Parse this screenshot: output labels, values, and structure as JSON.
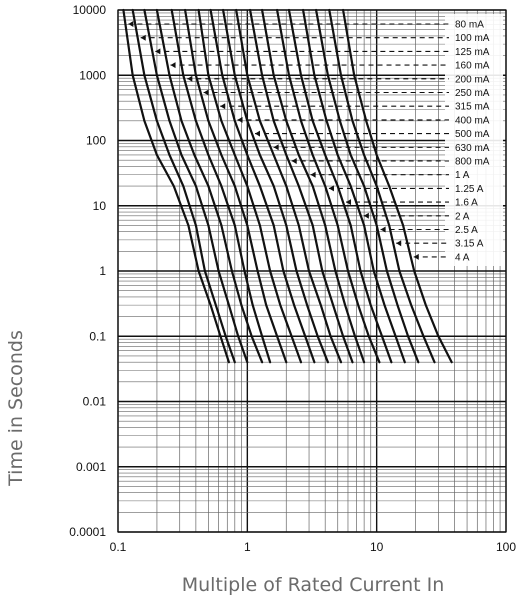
{
  "chart_data": {
    "type": "line",
    "title": "",
    "xlabel": "Multiple of Rated Current In",
    "ylabel": "Time in Seconds",
    "x_scale": "log",
    "y_scale": "log",
    "xlim": [
      0.1,
      100
    ],
    "ylim": [
      0.0001,
      10000
    ],
    "x_ticks": [
      "0.1",
      "1",
      "10",
      "100"
    ],
    "y_ticks": [
      "10000",
      "1000",
      "100",
      "10",
      "1",
      "0.1",
      "0.01",
      "0.001",
      "0.0001"
    ],
    "grid": true,
    "colors": {
      "curve": "#111111",
      "grid": "#555555",
      "axis_title": "#6b6b6b"
    },
    "series": [
      {
        "name": "80 mA",
        "min_x": 0.11,
        "end_x": 0.72,
        "points": [
          [
            0.11,
            10000
          ],
          [
            0.13,
            1000
          ],
          [
            0.16,
            200
          ],
          [
            0.2,
            60
          ],
          [
            0.27,
            20
          ],
          [
            0.35,
            5
          ],
          [
            0.42,
            1
          ],
          [
            0.52,
            0.3
          ],
          [
            0.62,
            0.1
          ],
          [
            0.72,
            0.04
          ]
        ]
      },
      {
        "name": "100 mA",
        "min_x": 0.13,
        "end_x": 0.8,
        "points": [
          [
            0.13,
            10000
          ],
          [
            0.16,
            1000
          ],
          [
            0.2,
            200
          ],
          [
            0.25,
            60
          ],
          [
            0.32,
            20
          ],
          [
            0.4,
            5
          ],
          [
            0.47,
            1
          ],
          [
            0.57,
            0.3
          ],
          [
            0.68,
            0.1
          ],
          [
            0.8,
            0.04
          ]
        ]
      },
      {
        "name": "125 mA",
        "min_x": 0.16,
        "end_x": 1.0,
        "points": [
          [
            0.16,
            10000
          ],
          [
            0.2,
            1000
          ],
          [
            0.25,
            200
          ],
          [
            0.31,
            60
          ],
          [
            0.4,
            20
          ],
          [
            0.5,
            5
          ],
          [
            0.6,
            1
          ],
          [
            0.72,
            0.3
          ],
          [
            0.85,
            0.1
          ],
          [
            1.0,
            0.04
          ]
        ]
      },
      {
        "name": "160 mA",
        "min_x": 0.2,
        "end_x": 1.3,
        "points": [
          [
            0.2,
            10000
          ],
          [
            0.25,
            1000
          ],
          [
            0.31,
            200
          ],
          [
            0.39,
            60
          ],
          [
            0.5,
            20
          ],
          [
            0.63,
            5
          ],
          [
            0.76,
            1
          ],
          [
            0.9,
            0.3
          ],
          [
            1.08,
            0.1
          ],
          [
            1.3,
            0.04
          ]
        ]
      },
      {
        "name": "200 mA",
        "min_x": 0.26,
        "end_x": 1.5,
        "points": [
          [
            0.26,
            10000
          ],
          [
            0.32,
            1000
          ],
          [
            0.4,
            200
          ],
          [
            0.5,
            60
          ],
          [
            0.63,
            20
          ],
          [
            0.8,
            5
          ],
          [
            0.95,
            1
          ],
          [
            1.1,
            0.3
          ],
          [
            1.3,
            0.1
          ],
          [
            1.5,
            0.04
          ]
        ]
      },
      {
        "name": "250 mA",
        "min_x": 0.33,
        "end_x": 2.0,
        "points": [
          [
            0.33,
            10000
          ],
          [
            0.4,
            1000
          ],
          [
            0.5,
            200
          ],
          [
            0.63,
            60
          ],
          [
            0.8,
            20
          ],
          [
            1.0,
            5
          ],
          [
            1.2,
            1
          ],
          [
            1.4,
            0.3
          ],
          [
            1.7,
            0.1
          ],
          [
            2.0,
            0.04
          ]
        ]
      },
      {
        "name": "315 mA",
        "min_x": 0.42,
        "end_x": 2.6,
        "points": [
          [
            0.42,
            10000
          ],
          [
            0.5,
            1000
          ],
          [
            0.63,
            200
          ],
          [
            0.8,
            60
          ],
          [
            1.0,
            20
          ],
          [
            1.25,
            5
          ],
          [
            1.5,
            1
          ],
          [
            1.8,
            0.3
          ],
          [
            2.2,
            0.1
          ],
          [
            2.6,
            0.04
          ]
        ]
      },
      {
        "name": "400 mA",
        "min_x": 0.52,
        "end_x": 3.3,
        "points": [
          [
            0.52,
            10000
          ],
          [
            0.64,
            1000
          ],
          [
            0.8,
            200
          ],
          [
            1.0,
            60
          ],
          [
            1.25,
            20
          ],
          [
            1.6,
            5
          ],
          [
            1.9,
            1
          ],
          [
            2.3,
            0.3
          ],
          [
            2.8,
            0.1
          ],
          [
            3.3,
            0.04
          ]
        ]
      },
      {
        "name": "500 mA",
        "min_x": 0.65,
        "end_x": 4.2,
        "points": [
          [
            0.65,
            10000
          ],
          [
            0.8,
            1000
          ],
          [
            1.0,
            200
          ],
          [
            1.25,
            60
          ],
          [
            1.6,
            20
          ],
          [
            2.0,
            5
          ],
          [
            2.4,
            1
          ],
          [
            2.9,
            0.3
          ],
          [
            3.5,
            0.1
          ],
          [
            4.2,
            0.04
          ]
        ]
      },
      {
        "name": "630 mA",
        "min_x": 0.82,
        "end_x": 5.3,
        "points": [
          [
            0.82,
            10000
          ],
          [
            1.0,
            1000
          ],
          [
            1.25,
            200
          ],
          [
            1.6,
            60
          ],
          [
            2.0,
            20
          ],
          [
            2.5,
            5
          ],
          [
            3.0,
            1
          ],
          [
            3.7,
            0.3
          ],
          [
            4.4,
            0.1
          ],
          [
            5.3,
            0.04
          ]
        ]
      },
      {
        "name": "800 mA",
        "min_x": 1.05,
        "end_x": 6.5,
        "points": [
          [
            1.05,
            10000
          ],
          [
            1.3,
            1000
          ],
          [
            1.6,
            200
          ],
          [
            2.0,
            60
          ],
          [
            2.5,
            20
          ],
          [
            3.2,
            5
          ],
          [
            3.8,
            1
          ],
          [
            4.6,
            0.3
          ],
          [
            5.5,
            0.1
          ],
          [
            6.5,
            0.04
          ]
        ]
      },
      {
        "name": "1 A",
        "min_x": 1.3,
        "end_x": 8.0,
        "points": [
          [
            1.3,
            10000
          ],
          [
            1.6,
            1000
          ],
          [
            2.0,
            200
          ],
          [
            2.5,
            60
          ],
          [
            3.2,
            20
          ],
          [
            4.0,
            5
          ],
          [
            4.8,
            1
          ],
          [
            5.7,
            0.3
          ],
          [
            6.8,
            0.1
          ],
          [
            8.0,
            0.04
          ]
        ]
      },
      {
        "name": "1.25 A",
        "min_x": 1.7,
        "end_x": 10.5,
        "points": [
          [
            1.7,
            10000
          ],
          [
            2.1,
            1000
          ],
          [
            2.6,
            200
          ],
          [
            3.2,
            60
          ],
          [
            4.0,
            20
          ],
          [
            5.0,
            5
          ],
          [
            6.0,
            1
          ],
          [
            7.2,
            0.3
          ],
          [
            8.7,
            0.1
          ],
          [
            10.5,
            0.04
          ]
        ]
      },
      {
        "name": "1.6 A",
        "min_x": 2.1,
        "end_x": 13.0,
        "points": [
          [
            2.1,
            10000
          ],
          [
            2.6,
            1000
          ],
          [
            3.2,
            200
          ],
          [
            4.0,
            60
          ],
          [
            5.0,
            20
          ],
          [
            6.3,
            5
          ],
          [
            7.5,
            1
          ],
          [
            9.0,
            0.3
          ],
          [
            11.0,
            0.1
          ],
          [
            13.0,
            0.04
          ]
        ]
      },
      {
        "name": "2 A",
        "min_x": 2.7,
        "end_x": 16.5,
        "points": [
          [
            2.7,
            10000
          ],
          [
            3.3,
            1000
          ],
          [
            4.1,
            200
          ],
          [
            5.0,
            60
          ],
          [
            6.3,
            20
          ],
          [
            8.0,
            5
          ],
          [
            9.5,
            1
          ],
          [
            11.5,
            0.3
          ],
          [
            14.0,
            0.1
          ],
          [
            16.5,
            0.04
          ]
        ]
      },
      {
        "name": "2.5 A",
        "min_x": 3.4,
        "end_x": 21.0,
        "points": [
          [
            3.4,
            10000
          ],
          [
            4.2,
            1000
          ],
          [
            5.2,
            200
          ],
          [
            6.3,
            60
          ],
          [
            8.0,
            20
          ],
          [
            10.0,
            5
          ],
          [
            12.0,
            1
          ],
          [
            14.5,
            0.3
          ],
          [
            17.5,
            0.1
          ],
          [
            21.0,
            0.04
          ]
        ]
      },
      {
        "name": "3.15 A",
        "min_x": 4.3,
        "end_x": 28.0,
        "points": [
          [
            4.3,
            10000
          ],
          [
            5.3,
            1000
          ],
          [
            6.5,
            200
          ],
          [
            8.0,
            60
          ],
          [
            10.0,
            20
          ],
          [
            12.5,
            5
          ],
          [
            15.0,
            1
          ],
          [
            18.5,
            0.3
          ],
          [
            23.0,
            0.1
          ],
          [
            28.0,
            0.04
          ]
        ]
      },
      {
        "name": "4 A",
        "min_x": 5.5,
        "end_x": 38.0,
        "points": [
          [
            5.5,
            10000
          ],
          [
            6.7,
            1000
          ],
          [
            8.3,
            200
          ],
          [
            10.0,
            60
          ],
          [
            12.5,
            20
          ],
          [
            16.0,
            5
          ],
          [
            19.5,
            1
          ],
          [
            24.0,
            0.3
          ],
          [
            30.0,
            0.1
          ],
          [
            38.0,
            0.04
          ]
        ]
      }
    ]
  }
}
